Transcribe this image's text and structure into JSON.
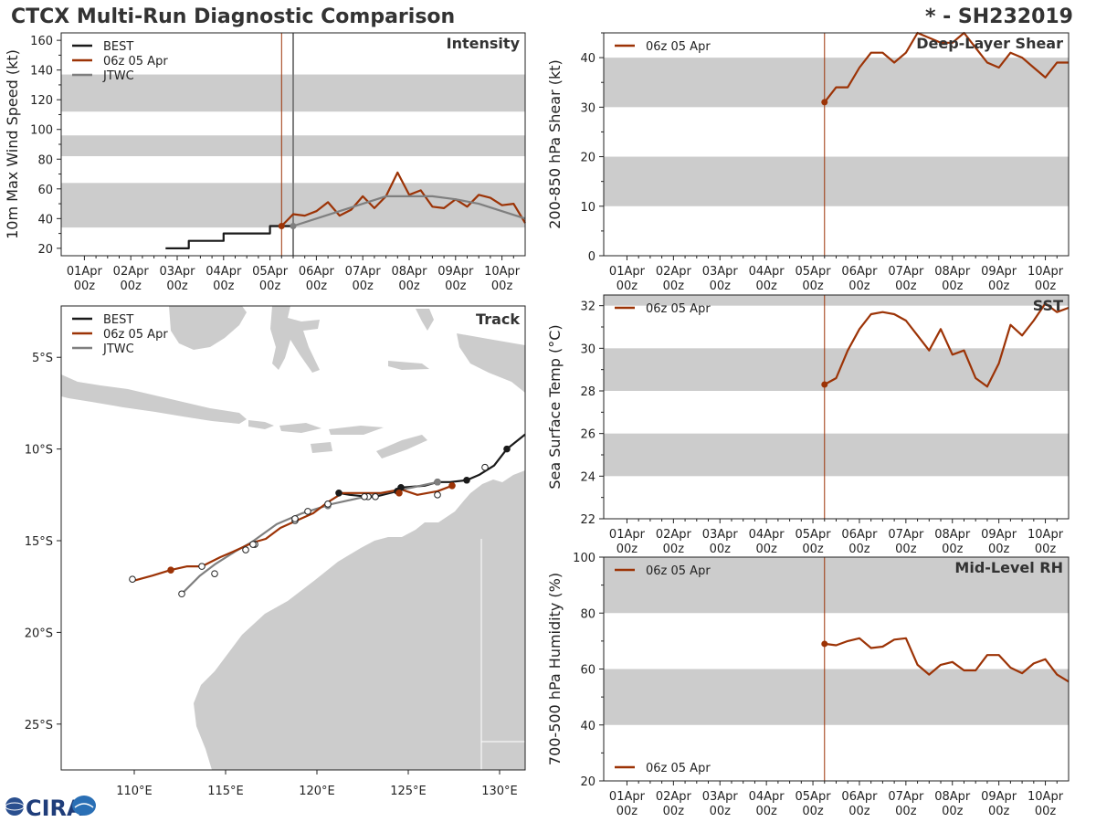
{
  "header": {
    "title": "CTCX Multi-Run Diagnostic Comparison",
    "storm_id": "* - SH232019"
  },
  "logo": {
    "text": "CIRA"
  },
  "colors": {
    "best": "#1a1a1a",
    "run": "#9c3306",
    "jtwc": "#7f7f7f",
    "band": "#cccccc",
    "land": "#cccccc"
  },
  "time_axis": {
    "ticks": [
      {
        "day": 1,
        "label": "01Apr",
        "hour": "00z"
      },
      {
        "day": 2,
        "label": "02Apr",
        "hour": "00z"
      },
      {
        "day": 3,
        "label": "03Apr",
        "hour": "00z"
      },
      {
        "day": 4,
        "label": "04Apr",
        "hour": "00z"
      },
      {
        "day": 5,
        "label": "05Apr",
        "hour": "00z"
      },
      {
        "day": 6,
        "label": "06Apr",
        "hour": "00z"
      },
      {
        "day": 7,
        "label": "07Apr",
        "hour": "00z"
      },
      {
        "day": 8,
        "label": "08Apr",
        "hour": "00z"
      },
      {
        "day": 9,
        "label": "09Apr",
        "hour": "00z"
      },
      {
        "day": 10,
        "label": "10Apr",
        "hour": "00z"
      }
    ],
    "xlim": [
      0.5,
      10.5
    ],
    "init_day": 5.25,
    "jtwc_day": 5.5
  },
  "chart_data": [
    {
      "id": "intensity",
      "type": "line",
      "title": "Intensity",
      "ylabel": "10m Max Wind Speed (kt)",
      "ylim": [
        15,
        165
      ],
      "yticks": [
        20,
        40,
        60,
        80,
        100,
        120,
        140,
        160
      ],
      "bands": [
        [
          34,
          64
        ],
        [
          82,
          96
        ],
        [
          112,
          137
        ]
      ],
      "legend": [
        "BEST",
        "06z 05 Apr",
        "JTWC"
      ],
      "series": [
        {
          "name": "BEST",
          "kind": "best",
          "step": true,
          "x": [
            2.75,
            3.0,
            3.25,
            3.5,
            3.75,
            4.0,
            4.25,
            4.5,
            4.75,
            5.0,
            5.25,
            5.5
          ],
          "y": [
            20,
            20,
            25,
            25,
            25,
            30,
            30,
            30,
            30,
            35,
            35,
            35
          ]
        },
        {
          "name": "06z 05 Apr",
          "kind": "run",
          "x": [
            5.25,
            5.5,
            5.75,
            6.0,
            6.25,
            6.5,
            6.75,
            7.0,
            7.25,
            7.5,
            7.75,
            8.0,
            8.25,
            8.5,
            8.75,
            9.0,
            9.25,
            9.5,
            9.75,
            10.0,
            10.25,
            10.5
          ],
          "y": [
            35,
            43,
            42,
            45,
            51,
            42,
            46,
            55,
            47,
            55,
            71,
            56,
            59,
            48,
            47,
            53,
            48,
            56,
            54,
            49,
            50,
            37
          ]
        },
        {
          "name": "JTWC",
          "kind": "jtwc",
          "x": [
            5.5,
            6.0,
            6.5,
            7.0,
            7.5,
            8.0,
            8.5,
            9.0,
            9.5,
            10.0,
            10.5
          ],
          "y": [
            35,
            40,
            45,
            50,
            55,
            55,
            55,
            53,
            50,
            45,
            40
          ]
        }
      ]
    },
    {
      "id": "shear",
      "type": "line",
      "title": "Deep-Layer Shear",
      "ylabel": "200-850 hPa Shear (kt)",
      "ylim": [
        0,
        45
      ],
      "yticks": [
        0,
        10,
        20,
        30,
        40
      ],
      "bands": [
        [
          10,
          20
        ],
        [
          30,
          40
        ]
      ],
      "legend": [
        "06z 05 Apr"
      ],
      "series": [
        {
          "name": "06z 05 Apr",
          "kind": "run",
          "x": [
            5.25,
            5.5,
            5.75,
            6.0,
            6.25,
            6.5,
            6.75,
            7.0,
            7.25,
            7.5,
            7.75,
            8.0,
            8.25,
            8.5,
            8.75,
            9.0,
            9.25,
            9.5,
            9.75,
            10.0,
            10.25,
            10.5
          ],
          "y": [
            31,
            34,
            34,
            38,
            41,
            41,
            39,
            41,
            45,
            44,
            43,
            43,
            45,
            42,
            39,
            38,
            41,
            40,
            38,
            36,
            39,
            39
          ]
        }
      ]
    },
    {
      "id": "sst",
      "type": "line",
      "title": "SST",
      "ylabel": "Sea Surface Temp (°C)",
      "ylim": [
        22,
        32.5
      ],
      "yticks": [
        22,
        24,
        26,
        28,
        30,
        32
      ],
      "bands": [
        [
          24,
          26
        ],
        [
          28,
          30
        ],
        [
          32,
          32.5
        ]
      ],
      "legend": [
        "06z 05 Apr"
      ],
      "series": [
        {
          "name": "06z 05 Apr",
          "kind": "run",
          "x": [
            5.25,
            5.5,
            5.75,
            6.0,
            6.25,
            6.5,
            6.75,
            7.0,
            7.25,
            7.5,
            7.75,
            8.0,
            8.25,
            8.5,
            8.75,
            9.0,
            9.25,
            9.5,
            9.75,
            10.0,
            10.25,
            10.5
          ],
          "y": [
            28.3,
            28.6,
            29.9,
            30.9,
            31.6,
            31.7,
            31.6,
            31.3,
            30.6,
            29.9,
            30.9,
            29.7,
            29.9,
            28.6,
            28.2,
            29.3,
            31.1,
            30.6,
            31.3,
            32.1,
            31.7,
            31.9
          ]
        }
      ]
    },
    {
      "id": "rh",
      "type": "line",
      "title": "Mid-Level RH",
      "ylabel": "700-500 hPa Humidity (%)",
      "ylim": [
        20,
        100
      ],
      "yticks": [
        20,
        40,
        60,
        80,
        100
      ],
      "bands": [
        [
          40,
          60
        ],
        [
          80,
          100
        ]
      ],
      "legend": [
        "06z 05 Apr"
      ],
      "series": [
        {
          "name": "06z 05 Apr",
          "kind": "run",
          "x": [
            5.25,
            5.5,
            5.75,
            6.0,
            6.25,
            6.5,
            6.75,
            7.0,
            7.25,
            7.5,
            7.75,
            8.0,
            8.25,
            8.5,
            8.75,
            9.0,
            9.25,
            9.5,
            9.75,
            10.0,
            10.25,
            10.5
          ],
          "y": [
            69,
            68.5,
            70,
            71,
            67.5,
            68,
            70.5,
            71,
            61.5,
            58,
            61.5,
            62.5,
            59.5,
            59.5,
            65,
            65,
            60.5,
            58.5,
            62,
            63.5,
            58,
            55.5
          ]
        }
      ]
    },
    {
      "id": "track",
      "type": "scatter",
      "title": "Track",
      "xlim": [
        106,
        131.4
      ],
      "ylim": [
        -27.5,
        -2.2
      ],
      "xticks": [
        110,
        115,
        120,
        125,
        130
      ],
      "xticklabels": [
        "110°E",
        "115°E",
        "120°E",
        "125°E",
        "130°E"
      ],
      "yticks": [
        -5,
        -10,
        -15,
        -20,
        -25
      ],
      "yticklabels": [
        "5°S",
        "10°S",
        "15°S",
        "20°S",
        "25°S"
      ],
      "legend": [
        "BEST",
        "06z 05 Apr",
        "JTWC"
      ],
      "series": [
        {
          "name": "BEST",
          "kind": "best",
          "lon": [
            131.4,
            130.4,
            129.7,
            128.9,
            128.2,
            127.3,
            126.6,
            125.9,
            124.6,
            124.4,
            123.6,
            123.2,
            122.8,
            121.8,
            121.2
          ],
          "lat": [
            -9.2,
            -10.0,
            -10.9,
            -11.4,
            -11.7,
            -11.8,
            -11.8,
            -12.0,
            -12.1,
            -12.3,
            -12.5,
            -12.6,
            -12.6,
            -12.5,
            -12.4
          ],
          "dots": [
            [
              130.4,
              -10.0
            ],
            [
              129.2,
              -11.0
            ],
            [
              128.2,
              -11.7
            ],
            [
              126.6,
              -11.8
            ],
            [
              124.6,
              -12.1
            ],
            [
              124.4,
              -12.3
            ],
            [
              123.2,
              -12.6
            ],
            [
              122.8,
              -12.6
            ],
            [
              121.2,
              -12.4
            ]
          ],
          "open": [
            false,
            true,
            false,
            false,
            false,
            false,
            true,
            true,
            false
          ]
        },
        {
          "name": "JTWC",
          "kind": "jtwc",
          "lon": [
            126.6,
            125.2,
            123.6,
            122.2,
            120.8,
            119.2,
            117.8,
            116.4,
            115.5,
            114.4,
            113.6,
            112.6
          ],
          "lat": [
            -11.8,
            -12.1,
            -12.4,
            -12.7,
            -13.0,
            -13.5,
            -14.1,
            -15.1,
            -15.6,
            -16.3,
            -16.9,
            -17.9
          ],
          "dots": [
            [
              126.6,
              -11.8
            ],
            [
              120.6,
              -13.1
            ],
            [
              119.5,
              -13.4
            ],
            [
              118.8,
              -13.9
            ],
            [
              116.6,
              -15.2
            ],
            [
              116.1,
              -15.5
            ],
            [
              114.4,
              -16.8
            ],
            [
              112.6,
              -17.9
            ]
          ],
          "open": [
            false,
            false,
            true,
            true,
            true,
            true,
            true,
            true
          ]
        },
        {
          "name": "06z 05 Apr",
          "kind": "run",
          "lon": [
            127.4,
            126.6,
            125.5,
            124.6,
            123.5,
            122.3,
            121.4,
            120.6,
            119.8,
            118.9,
            118.0,
            117.2,
            116.5,
            115.4,
            114.7,
            113.7,
            112.9,
            112.0,
            111.0,
            109.9
          ],
          "lat": [
            -12.0,
            -12.3,
            -12.5,
            -12.2,
            -12.4,
            -12.4,
            -12.4,
            -12.9,
            -13.5,
            -13.9,
            -14.3,
            -14.9,
            -15.1,
            -15.6,
            -15.9,
            -16.4,
            -16.4,
            -16.6,
            -16.9,
            -17.2
          ],
          "dots": [
            [
              127.4,
              -12.0
            ],
            [
              126.6,
              -12.5
            ],
            [
              124.5,
              -12.4
            ],
            [
              122.6,
              -12.6
            ],
            [
              120.6,
              -13.0
            ],
            [
              118.8,
              -13.8
            ],
            [
              116.5,
              -15.2
            ],
            [
              113.7,
              -16.4
            ],
            [
              112.0,
              -16.6
            ],
            [
              109.9,
              -17.1
            ]
          ],
          "open": [
            false,
            true,
            false,
            true,
            true,
            true,
            true,
            true,
            false,
            true
          ]
        }
      ]
    }
  ]
}
